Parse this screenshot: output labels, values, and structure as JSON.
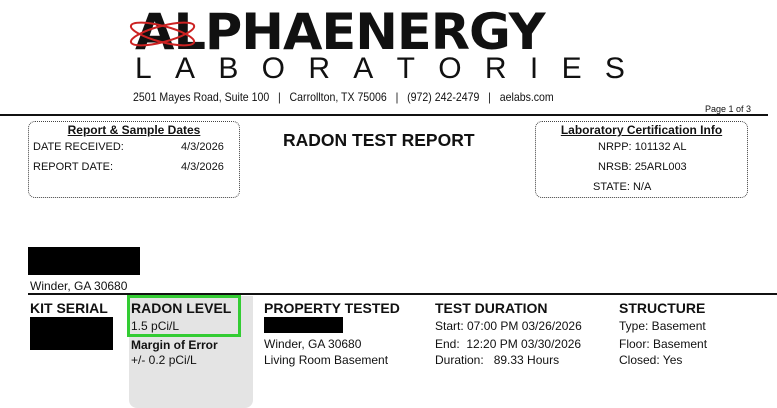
{
  "header": {
    "logo_main": "ALPHAENERGY",
    "logo_sub": [
      "L",
      "A",
      "B",
      "O",
      "R",
      "A",
      "T",
      "O",
      "R",
      "I",
      "E",
      "S"
    ],
    "address": "2501 Mayes Road, Suite 100",
    "city": "Carrollton, TX 75006",
    "phone": "(972) 242-2479",
    "website": "aelabs.com",
    "separator": "|",
    "page": "Page 1 of 3"
  },
  "dates_box": {
    "title": "Report & Sample Dates",
    "rows": [
      {
        "label": "DATE RECEIVED:",
        "value": "4/3/2026"
      },
      {
        "label": "REPORT DATE:",
        "value": "4/3/2026"
      }
    ]
  },
  "report_title": "RADON TEST REPORT",
  "cert_box": {
    "title": "Laboratory Certification Info",
    "rows": [
      {
        "label": "NRPP:",
        "value": "101132 AL"
      },
      {
        "label": "NRSB:",
        "value": "25ARL003"
      },
      {
        "label": "STATE:",
        "value": "N/A"
      }
    ]
  },
  "client": {
    "city_line": "Winder, GA 30680"
  },
  "columns": {
    "kit_serial": {
      "header": "KIT SERIAL"
    },
    "radon_level": {
      "header": "RADON LEVEL",
      "value": "1.5 pCi/L",
      "moe_label": "Margin of Error",
      "moe_value": "+/- 0.2 pCi/L"
    },
    "property": {
      "header": "PROPERTY TESTED",
      "city_line": "Winder, GA 30680",
      "location": "Living Room Basement"
    },
    "duration": {
      "header": "TEST DURATION",
      "start": "Start: 07:00 PM 03/26/2026",
      "end": "End:  12:20 PM 03/30/2026",
      "duration": "Duration:   89.33 Hours"
    },
    "structure": {
      "header": "STRUCTURE",
      "type": "Type: Basement",
      "floor": "Floor: Basement",
      "closed": "Closed: Yes"
    }
  },
  "colors": {
    "highlight": "#33cc33",
    "panel": "#e4e4e4",
    "logo_atom": "#cc2222"
  }
}
